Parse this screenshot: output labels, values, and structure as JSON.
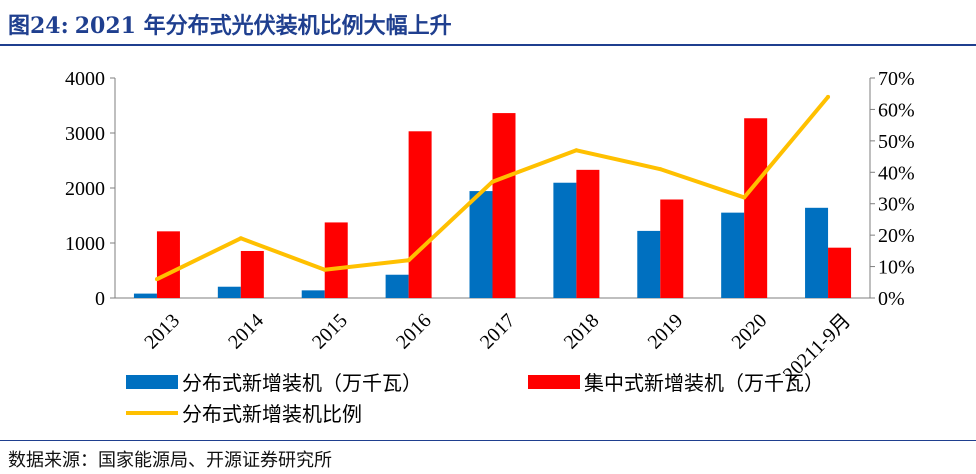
{
  "header": {
    "figure_no": "图24:",
    "title": "2021 年分布式光伏装机比例大幅上升"
  },
  "source": "数据来源：国家能源局、开源证券研究所",
  "chart_data": {
    "type": "bar",
    "categories": [
      "2013",
      "2014",
      "2015",
      "2016",
      "2017",
      "2018",
      "2019",
      "2020",
      "20211-9月"
    ],
    "series": [
      {
        "name": "分布式新增装机（万千瓦）",
        "kind": "bar",
        "axis": "left",
        "color": "#0070c0",
        "values": [
          80,
          205,
          139,
          423,
          1944,
          2096,
          1220,
          1552,
          1640
        ]
      },
      {
        "name": "集中式新增装机（万千瓦）",
        "kind": "bar",
        "axis": "left",
        "color": "#ff0000",
        "values": [
          1212,
          855,
          1374,
          3031,
          3362,
          2330,
          1791,
          3268,
          915
        ]
      },
      {
        "name": "分布式新增装机比例",
        "kind": "line",
        "axis": "right",
        "color": "#ffc000",
        "values": [
          0.06,
          0.19,
          0.09,
          0.12,
          0.37,
          0.47,
          0.41,
          0.32,
          0.64
        ]
      }
    ],
    "y_left": {
      "min": 0,
      "max": 4000,
      "ticks": [
        0,
        1000,
        2000,
        3000,
        4000
      ]
    },
    "y_right": {
      "min": 0,
      "max": 0.7,
      "ticks": [
        "0%",
        "10%",
        "20%",
        "30%",
        "40%",
        "50%",
        "60%",
        "70%"
      ]
    },
    "grid": false,
    "legend_position": "bottom"
  }
}
